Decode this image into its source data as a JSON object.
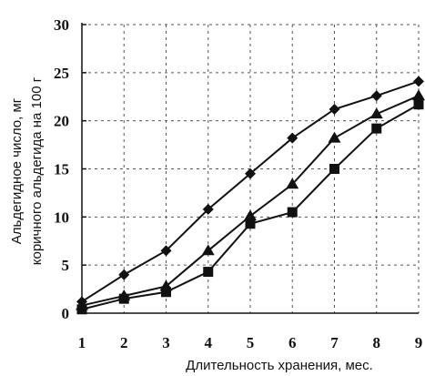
{
  "chart_data": {
    "type": "line",
    "title": "",
    "xlabel": "Длительность хранения, мес.",
    "ylabel_lines": [
      "Альдегидное число, мг",
      "коричного альдегида на 100 г"
    ],
    "x": [
      1,
      2,
      3,
      4,
      5,
      6,
      7,
      8,
      9
    ],
    "xlim": [
      1,
      9
    ],
    "ylim": [
      0,
      30
    ],
    "x_ticks": [
      1,
      2,
      3,
      4,
      5,
      6,
      7,
      8,
      9
    ],
    "y_ticks": [
      0,
      5,
      10,
      15,
      20,
      25,
      30
    ],
    "grid": true,
    "grid_style": "dashed",
    "legend": "none",
    "series": [
      {
        "marker": "diamond",
        "values": [
          1.2,
          4.0,
          6.5,
          10.8,
          14.5,
          18.2,
          21.2,
          22.6,
          24.1
        ]
      },
      {
        "marker": "triangle",
        "values": [
          0.8,
          1.8,
          2.8,
          6.5,
          10.1,
          13.4,
          18.2,
          20.7,
          22.6
        ]
      },
      {
        "marker": "square",
        "values": [
          0.4,
          1.5,
          2.2,
          4.3,
          9.3,
          10.5,
          15.0,
          19.2,
          21.7
        ]
      }
    ],
    "colors": {
      "line": "#111111",
      "grid": "#555555"
    }
  }
}
